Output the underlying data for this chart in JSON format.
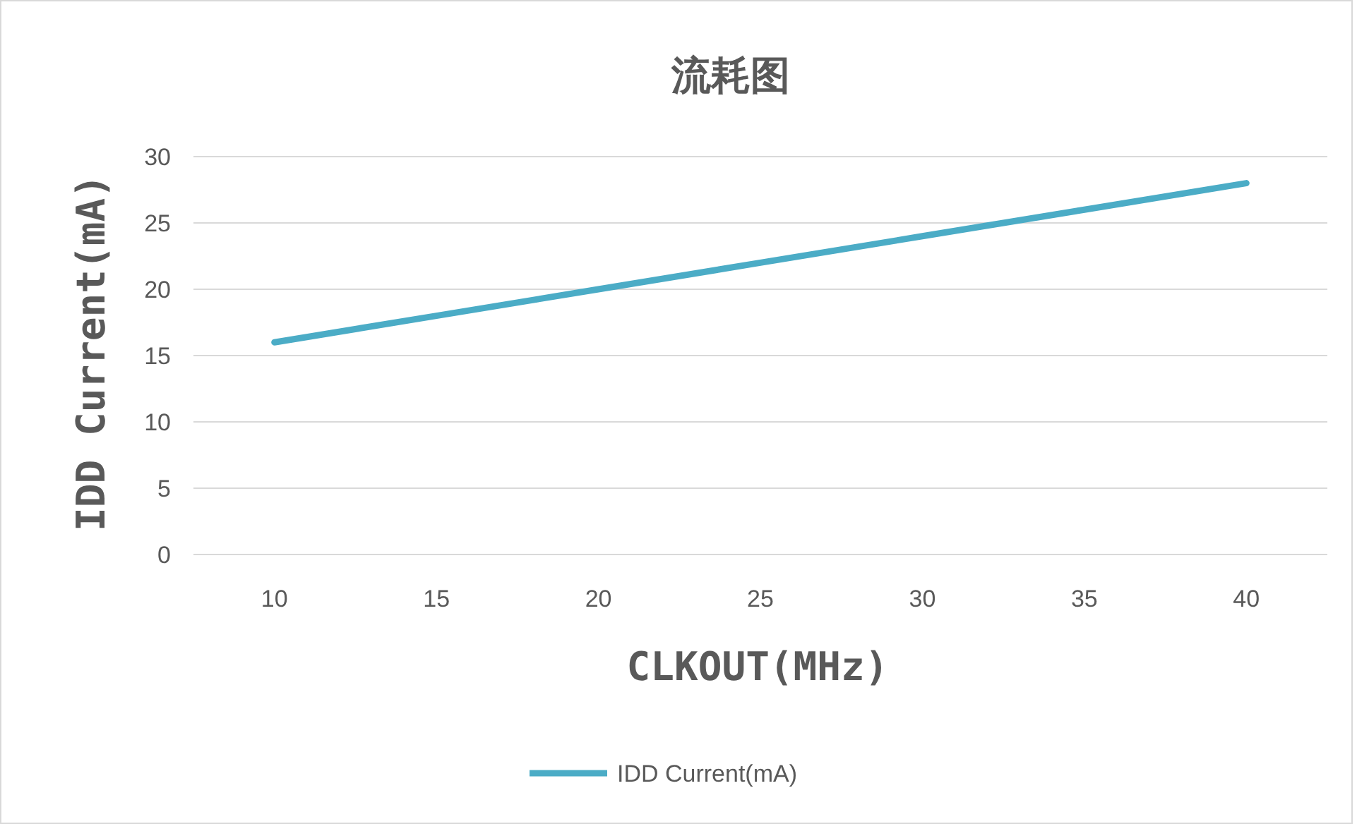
{
  "chart_data": {
    "type": "line",
    "title": "流耗图",
    "xlabel": "CLKOUT(MHz)",
    "ylabel": "IDD Current(mA)",
    "categories": [
      "10",
      "15",
      "20",
      "25",
      "30",
      "35",
      "40"
    ],
    "series": [
      {
        "name": "IDD Current(mA)",
        "color": "#4bacc6",
        "values": [
          16,
          18,
          20,
          22,
          24,
          26,
          28
        ]
      }
    ],
    "ylim": [
      0,
      30
    ],
    "yticks": [
      0,
      5,
      10,
      15,
      20,
      25,
      30
    ],
    "grid": "y",
    "legend": "bottom",
    "marker": "none",
    "line_style": "solid"
  }
}
